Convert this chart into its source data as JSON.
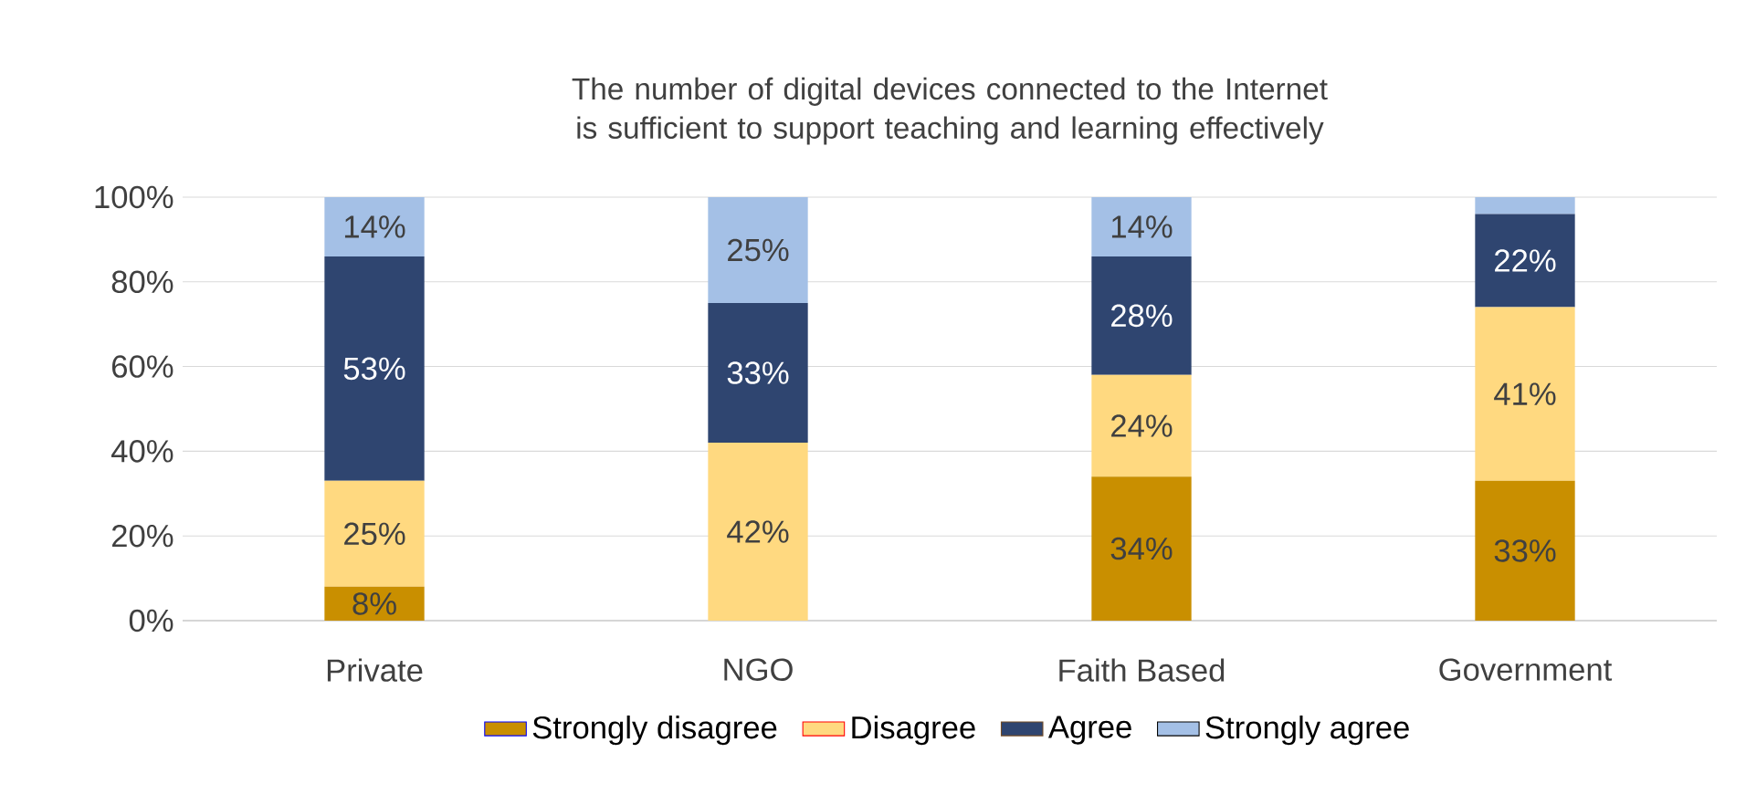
{
  "chart_data": {
    "type": "bar",
    "stacked": true,
    "title": "The number of digital devices connected to the Internet is sufficient to support teaching and learning effectively",
    "categories": [
      "Private",
      "NGO",
      "Faith Based",
      "Government"
    ],
    "series": [
      {
        "name": "Strongly disagree",
        "color": "#c98f00",
        "values": [
          8,
          0,
          34,
          33
        ],
        "value_labels": [
          "8%",
          null,
          "34%",
          "33%"
        ]
      },
      {
        "name": "Disagree",
        "color": "#ffd980",
        "values": [
          25,
          42,
          24,
          41
        ],
        "value_labels": [
          "25%",
          "42%",
          "24%",
          "41%"
        ]
      },
      {
        "name": "Agree",
        "color": "#2f4570",
        "values": [
          53,
          33,
          28,
          22
        ],
        "value_labels": [
          "53%",
          "33%",
          "28%",
          "22%"
        ]
      },
      {
        "name": "Strongly agree",
        "color": "#a4c0e6",
        "values": [
          14,
          25,
          14,
          4
        ],
        "value_labels": [
          "14%",
          "25%",
          "14%",
          null
        ]
      }
    ],
    "ylim": [
      0,
      100
    ],
    "yticks": [
      {
        "value": 0,
        "label": "0%"
      },
      {
        "value": 20,
        "label": "20%"
      },
      {
        "value": 40,
        "label": "40%"
      },
      {
        "value": 60,
        "label": "60%"
      },
      {
        "value": 80,
        "label": "80%"
      },
      {
        "value": 100,
        "label": "100%"
      }
    ],
    "grid": "y",
    "legend": "bottom"
  }
}
